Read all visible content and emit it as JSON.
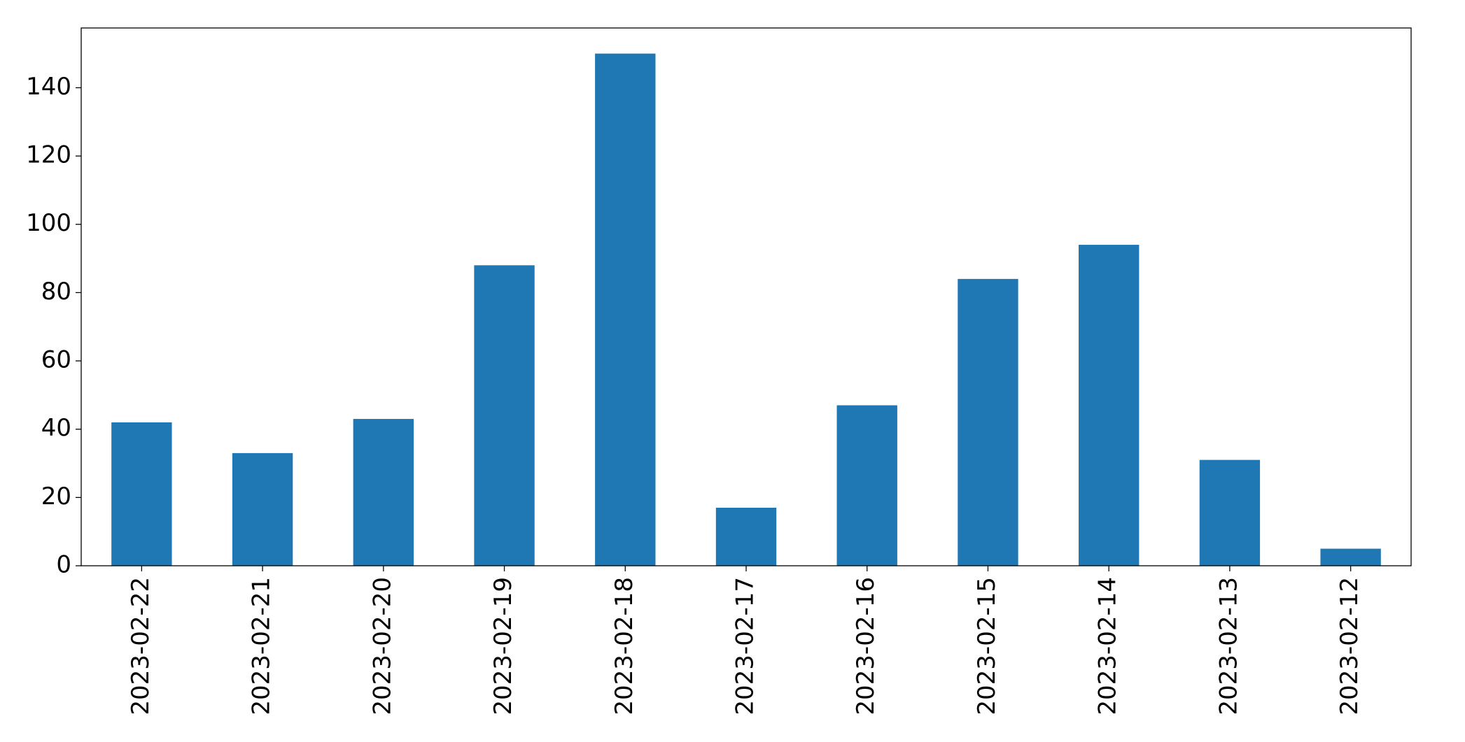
{
  "chart_data": {
    "type": "bar",
    "categories": [
      "2023-02-22",
      "2023-02-21",
      "2023-02-20",
      "2023-02-19",
      "2023-02-18",
      "2023-02-17",
      "2023-02-16",
      "2023-02-15",
      "2023-02-14",
      "2023-02-13",
      "2023-02-12"
    ],
    "values": [
      42,
      33,
      43,
      88,
      150,
      17,
      47,
      84,
      94,
      31,
      5
    ],
    "color": "#1f77b4",
    "ylim": [
      0,
      157.5
    ],
    "yticks": [
      0,
      20,
      40,
      60,
      80,
      100,
      120,
      140
    ],
    "grid": false
  }
}
